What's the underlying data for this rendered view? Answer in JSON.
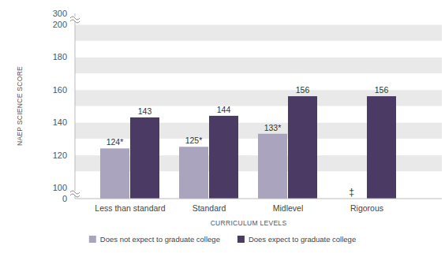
{
  "chart_data": {
    "type": "bar",
    "x_label": "CURRICULUM LEVELS",
    "y_label": "NAEP SCIENCE SCORE",
    "categories": [
      "Less than standard",
      "Standard",
      "Midlevel",
      "Rigorous"
    ],
    "series": [
      {
        "name": "Does not expect to graduate college",
        "color": "#aaa4be",
        "values": [
          124,
          125,
          133,
          null
        ],
        "value_labels": [
          "124*",
          "125*",
          "133*",
          "‡"
        ]
      },
      {
        "name": "Does expect to graduate college",
        "color": "#4b3a63",
        "values": [
          143,
          144,
          156,
          156
        ]
      }
    ],
    "ylim": [
      0,
      300
    ],
    "yticks": [
      0,
      100,
      120,
      140,
      160,
      180,
      200,
      300
    ],
    "grid": true,
    "data_labels": true,
    "legend": "bottom"
  }
}
